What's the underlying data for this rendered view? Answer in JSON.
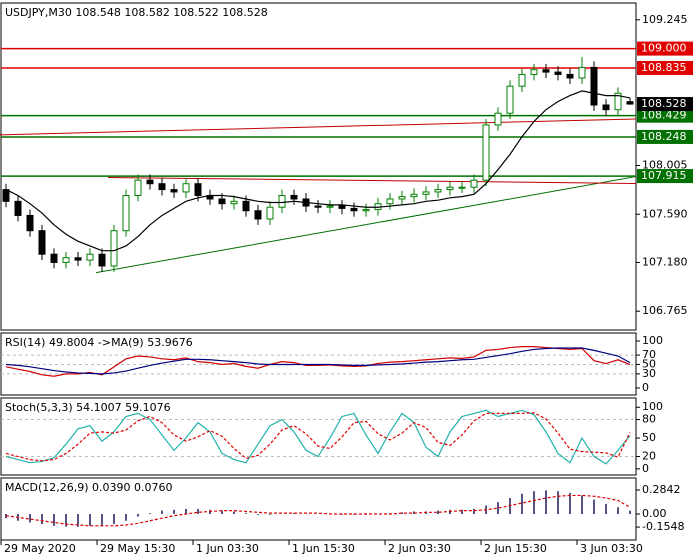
{
  "chart_data": [
    {
      "type": "candlestick",
      "title": "USDJPY,M30  108.548 108.582 108.522 108.528",
      "ylim": [
        106.605,
        109.388
      ],
      "yticks": [
        106.765,
        {
          "value": 107.18,
          "label": "107.180"
        },
        {
          "value": 107.59,
          "label": "107.590"
        },
        108.005,
        109.245
      ],
      "up_color": "#008000",
      "down_color": "#000000",
      "open": [
        107.8,
        107.7,
        107.58,
        107.45,
        107.25,
        107.18,
        107.22,
        107.2,
        107.25,
        107.15,
        107.45,
        107.75,
        107.88,
        107.85,
        107.8,
        107.78,
        107.85,
        107.75,
        107.72,
        107.68,
        107.7,
        107.62,
        107.55,
        107.65,
        107.75,
        107.72,
        107.66,
        107.65,
        107.66,
        107.64,
        107.62,
        107.63,
        107.68,
        107.72,
        107.74,
        107.76,
        107.78,
        107.8,
        107.82,
        107.82,
        107.88,
        108.35,
        108.45,
        108.68,
        108.78,
        108.82,
        108.8,
        108.78,
        108.75,
        108.84,
        108.52,
        108.48,
        108.548
      ],
      "high": [
        107.85,
        107.75,
        107.63,
        107.5,
        107.3,
        107.27,
        107.27,
        107.3,
        107.3,
        107.5,
        107.8,
        107.93,
        107.93,
        107.9,
        107.85,
        107.9,
        107.9,
        107.8,
        107.77,
        107.75,
        107.75,
        107.67,
        107.7,
        107.8,
        107.8,
        107.77,
        107.71,
        107.71,
        107.71,
        107.69,
        107.68,
        107.73,
        107.77,
        107.79,
        107.81,
        107.83,
        107.85,
        107.87,
        107.87,
        107.93,
        108.4,
        108.5,
        108.73,
        108.83,
        108.87,
        108.87,
        108.85,
        108.83,
        108.93,
        108.89,
        108.57,
        108.67,
        108.582
      ],
      "low": [
        107.65,
        107.53,
        107.4,
        107.2,
        107.13,
        107.13,
        107.15,
        107.15,
        107.1,
        107.1,
        107.4,
        107.7,
        107.8,
        107.75,
        107.73,
        107.73,
        107.7,
        107.67,
        107.63,
        107.63,
        107.57,
        107.5,
        107.5,
        107.6,
        107.67,
        107.61,
        107.6,
        107.6,
        107.59,
        107.57,
        107.57,
        107.58,
        107.63,
        107.67,
        107.69,
        107.71,
        107.73,
        107.75,
        107.77,
        107.77,
        107.83,
        108.3,
        108.4,
        108.63,
        108.73,
        108.75,
        108.73,
        108.7,
        108.7,
        108.47,
        108.43,
        108.43,
        108.522
      ],
      "close": [
        107.7,
        107.58,
        107.45,
        107.25,
        107.18,
        107.22,
        107.2,
        107.25,
        107.15,
        107.45,
        107.75,
        107.88,
        107.85,
        107.8,
        107.78,
        107.85,
        107.75,
        107.72,
        107.68,
        107.7,
        107.62,
        107.55,
        107.65,
        107.75,
        107.72,
        107.66,
        107.65,
        107.66,
        107.64,
        107.62,
        107.63,
        107.68,
        107.72,
        107.74,
        107.76,
        107.78,
        107.8,
        107.82,
        107.82,
        107.88,
        108.35,
        108.45,
        108.68,
        108.78,
        108.82,
        108.8,
        108.78,
        108.75,
        108.84,
        108.52,
        108.48,
        108.62,
        108.528
      ],
      "ma": {
        "color": "#000000",
        "values": [
          107.8,
          107.75,
          107.68,
          107.6,
          107.5,
          107.42,
          107.36,
          107.32,
          107.28,
          107.28,
          107.32,
          107.4,
          107.5,
          107.58,
          107.64,
          107.7,
          107.73,
          107.75,
          107.75,
          107.74,
          107.72,
          107.7,
          107.69,
          107.69,
          107.7,
          107.69,
          107.68,
          107.67,
          107.67,
          107.66,
          107.65,
          107.65,
          107.66,
          107.67,
          107.68,
          107.7,
          107.71,
          107.73,
          107.74,
          107.76,
          107.85,
          107.97,
          108.1,
          108.25,
          108.38,
          108.48,
          108.55,
          108.6,
          108.64,
          108.62,
          108.6,
          108.6,
          108.58
        ]
      },
      "levels": [
        {
          "value": 109.0,
          "label": "109.000",
          "color": "#e00000"
        },
        {
          "value": 108.835,
          "label": "108.835",
          "color": "#e00000"
        },
        {
          "value": 108.429,
          "label": "108.429",
          "color": "#007000"
        },
        {
          "value": 108.248,
          "label": "108.248",
          "color": "#007000"
        },
        {
          "value": 107.915,
          "label": "107.915",
          "color": "#007000"
        }
      ],
      "current": {
        "value": 108.528,
        "label": "108.528",
        "color": "#000000"
      },
      "trendlines": [
        {
          "color": "#007000",
          "x": [
            8,
            53
          ],
          "y": [
            107.093,
            107.911
          ]
        },
        {
          "color": "#c00000",
          "x": [
            0,
            53
          ],
          "y": [
            108.266,
            108.401
          ]
        },
        {
          "color": "#c00000",
          "x": [
            9,
            53
          ],
          "y": [
            107.903,
            107.852
          ]
        }
      ]
    },
    {
      "type": "line",
      "title": "RSI(14) 49.8004  ->MA(9) 53.9676",
      "ylim": [
        -15,
        117
      ],
      "yticks": [
        0,
        30,
        50,
        70,
        100
      ],
      "levels_dashed": [
        30,
        50,
        70
      ],
      "series": [
        {
          "color": "#d00000",
          "values": [
            45,
            40,
            35,
            28,
            25,
            30,
            30,
            33,
            28,
            45,
            62,
            68,
            66,
            62,
            60,
            64,
            56,
            54,
            50,
            52,
            46,
            42,
            50,
            56,
            54,
            48,
            48,
            49,
            47,
            46,
            47,
            52,
            55,
            56,
            58,
            60,
            62,
            64,
            63,
            66,
            80,
            82,
            86,
            88,
            88,
            86,
            84,
            82,
            84,
            58,
            52,
            60,
            49.8
          ]
        },
        {
          "color": "#000080",
          "values": [
            50,
            48,
            45,
            41,
            37,
            34,
            32,
            31,
            30,
            32,
            36,
            42,
            48,
            53,
            57,
            61,
            61,
            60,
            58,
            56,
            54,
            51,
            50,
            50,
            50,
            50,
            50,
            50,
            49,
            48,
            48,
            49,
            50,
            51,
            53,
            55,
            56,
            58,
            60,
            61,
            65,
            69,
            73,
            78,
            82,
            84,
            85,
            85,
            85,
            80,
            74,
            68,
            54
          ]
        }
      ]
    },
    {
      "type": "line",
      "title": "Stoch(5,3,3) 54.1007 59.1076",
      "ylim": [
        -10,
        115
      ],
      "yticks": [
        0,
        20,
        50,
        80,
        100
      ],
      "levels_dashed": [
        20,
        80
      ],
      "series": [
        {
          "color": "#20b2aa",
          "values": [
            20,
            15,
            10,
            12,
            18,
            40,
            65,
            70,
            45,
            60,
            85,
            90,
            80,
            55,
            30,
            50,
            75,
            60,
            25,
            15,
            10,
            40,
            70,
            80,
            60,
            30,
            20,
            50,
            85,
            90,
            55,
            25,
            60,
            90,
            75,
            35,
            20,
            60,
            85,
            90,
            95,
            85,
            90,
            95,
            88,
            60,
            25,
            10,
            50,
            20,
            8,
            30,
            54
          ]
        },
        {
          "color": "#e00000",
          "dashed": true,
          "values": [
            25,
            20,
            15,
            13,
            15,
            25,
            40,
            58,
            60,
            58,
            63,
            78,
            85,
            75,
            55,
            45,
            52,
            62,
            53,
            33,
            17,
            22,
            40,
            63,
            70,
            57,
            37,
            33,
            52,
            75,
            77,
            57,
            47,
            58,
            75,
            67,
            43,
            38,
            55,
            78,
            90,
            90,
            90,
            90,
            91,
            81,
            58,
            32,
            28,
            27,
            26,
            19,
            59
          ]
        }
      ]
    },
    {
      "type": "line",
      "title": "MACD(12,26,9) 0.0390 0.0760",
      "ylim": [
        -0.308,
        0.4265
      ],
      "yticks": [
        -0.1548,
        {
          "value": 0,
          "label": "0.00"
        },
        0.2842
      ],
      "xticks": [
        {
          "value": 0,
          "label": "29 May 2020"
        },
        {
          "value": 8,
          "label": "29 May 15:30"
        },
        {
          "value": 16,
          "label": "1 Jun 03:30"
        },
        {
          "value": 24,
          "label": "1 Jun 15:30"
        },
        {
          "value": 32,
          "label": "2 Jun 03:30"
        },
        {
          "value": 40,
          "label": "2 Jun 15:30"
        },
        {
          "value": 48,
          "label": "3 Jun 03:30"
        }
      ],
      "series": [
        {
          "type": "bar",
          "color": "#1a1a5a",
          "values": [
            -0.05,
            -0.08,
            -0.1,
            -0.12,
            -0.14,
            -0.15,
            -0.15,
            -0.14,
            -0.14,
            -0.12,
            -0.08,
            -0.03,
            0.01,
            0.04,
            0.05,
            0.06,
            0.06,
            0.05,
            0.04,
            0.03,
            0.01,
            -0.01,
            -0.01,
            0.0,
            0.01,
            0.0,
            0.0,
            0.0,
            -0.01,
            -0.01,
            -0.01,
            0.0,
            0.01,
            0.02,
            0.03,
            0.03,
            0.04,
            0.05,
            0.05,
            0.06,
            0.1,
            0.14,
            0.19,
            0.24,
            0.27,
            0.28,
            0.27,
            0.25,
            0.22,
            0.17,
            0.12,
            0.08,
            0.04
          ]
        },
        {
          "type": "line",
          "color": "#e00000",
          "dashed": true,
          "values": [
            -0.02,
            -0.04,
            -0.06,
            -0.08,
            -0.1,
            -0.12,
            -0.13,
            -0.14,
            -0.14,
            -0.14,
            -0.13,
            -0.11,
            -0.08,
            -0.05,
            -0.02,
            0.0,
            0.02,
            0.03,
            0.04,
            0.04,
            0.03,
            0.02,
            0.01,
            0.01,
            0.01,
            0.01,
            0.01,
            0.0,
            0.0,
            0.0,
            0.0,
            0.0,
            0.0,
            0.01,
            0.01,
            0.02,
            0.02,
            0.03,
            0.04,
            0.04,
            0.05,
            0.07,
            0.1,
            0.13,
            0.16,
            0.19,
            0.21,
            0.22,
            0.22,
            0.21,
            0.19,
            0.16,
            0.08
          ]
        }
      ]
    }
  ]
}
